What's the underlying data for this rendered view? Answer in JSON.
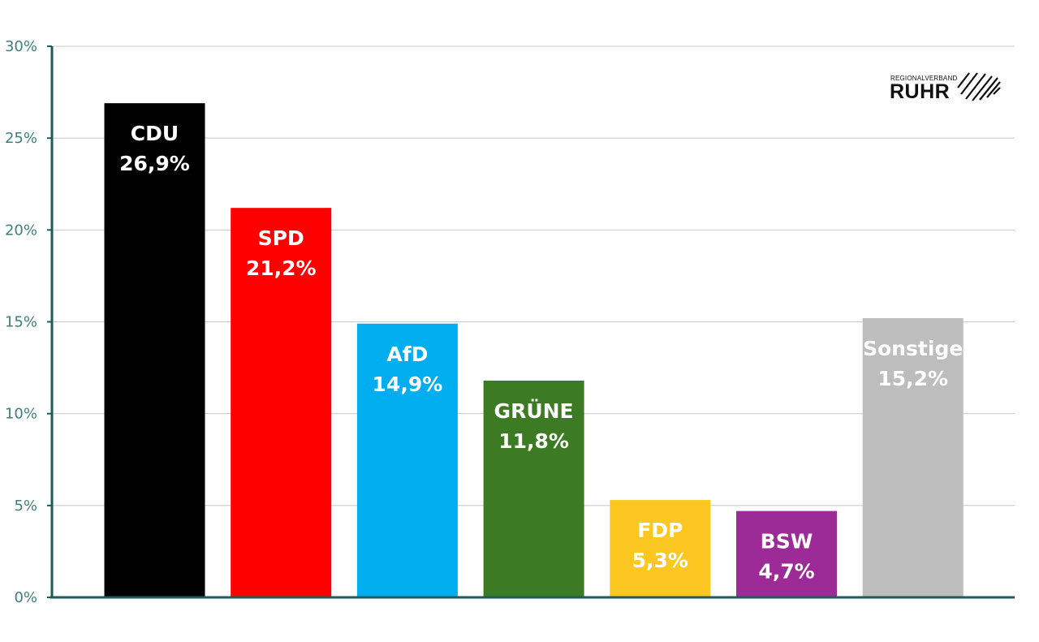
{
  "chart_data": {
    "type": "bar",
    "categories": [
      "CDU",
      "SPD",
      "AfD",
      "GRÜNE",
      "FDP",
      "BSW",
      "Sonstige"
    ],
    "values": [
      26.9,
      21.2,
      14.9,
      11.8,
      5.3,
      4.7,
      15.2
    ],
    "value_labels": [
      "26,9%",
      "21,2%",
      "14,9%",
      "11,8%",
      "5,3%",
      "4,7%",
      "15,2%"
    ],
    "colors": [
      "#000000",
      "#ff0000",
      "#00aeef",
      "#3c7a23",
      "#fdc721",
      "#9c2b97",
      "#bdbdbd"
    ],
    "ylim": [
      0,
      30
    ],
    "yticks": [
      0,
      5,
      10,
      15,
      20,
      25,
      30
    ],
    "ytick_labels": [
      "0%",
      "5%",
      "10%",
      "15%",
      "20%",
      "25%",
      "30%"
    ],
    "grid": true,
    "title": "",
    "xlabel": "",
    "ylabel": ""
  },
  "logo": {
    "small_text": "REGIONALVERBAND",
    "big_text": "RUHR"
  }
}
